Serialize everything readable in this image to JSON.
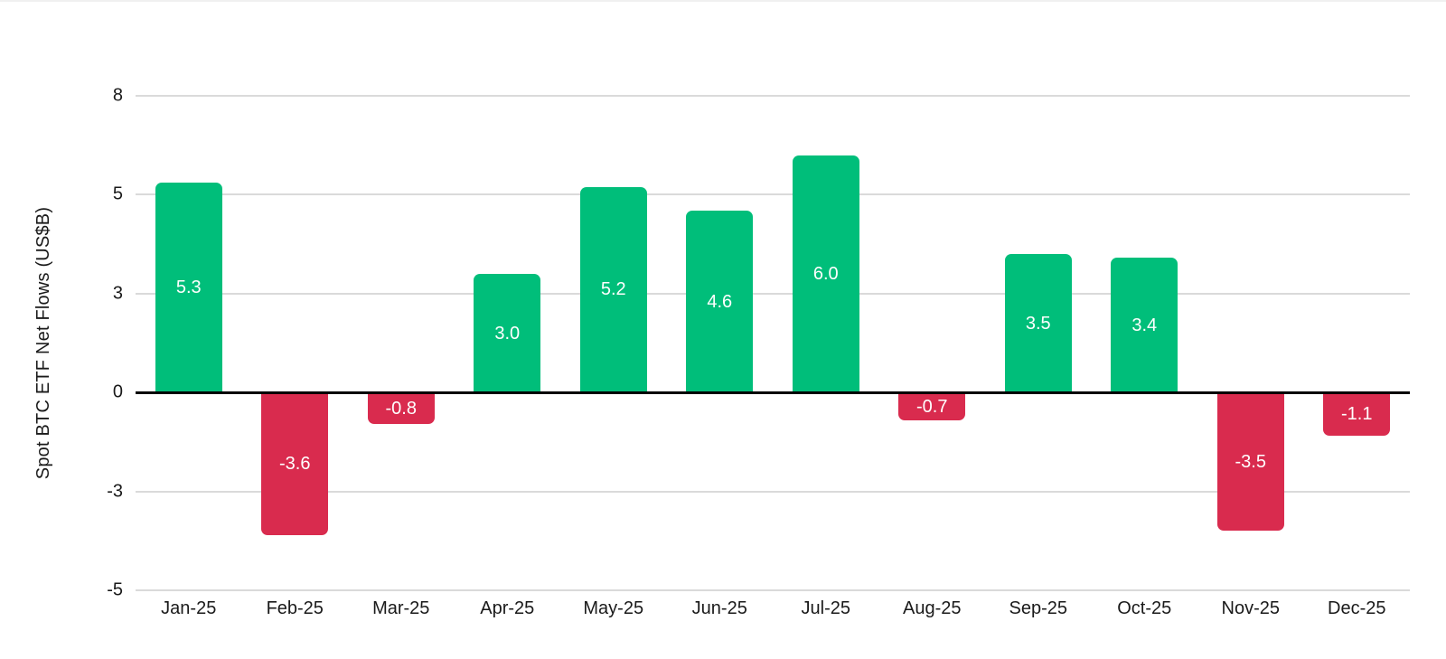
{
  "chart_data": {
    "type": "bar",
    "title": "",
    "xlabel": "",
    "ylabel": "Spot BTC ETF Net Flows (US$B)",
    "categories": [
      "Jan-25",
      "Feb-25",
      "Mar-25",
      "Apr-25",
      "May-25",
      "Jun-25",
      "Jul-25",
      "Aug-25",
      "Sep-25",
      "Oct-25",
      "Nov-25",
      "Dec-25"
    ],
    "values": [
      5.3,
      -3.6,
      -0.8,
      3.0,
      5.2,
      4.6,
      6.0,
      -0.7,
      3.5,
      3.4,
      -3.5,
      -1.1
    ],
    "bar_labels": [
      "5.3",
      "-3.6",
      "-0.8",
      "3.0",
      "5.2",
      "4.6",
      "6.0",
      "-0.7",
      "3.5",
      "3.4",
      "-3.5",
      "-1.1"
    ],
    "y_ticks": [
      {
        "label": "8",
        "value": 7.5
      },
      {
        "label": "5",
        "value": 5
      },
      {
        "label": "3",
        "value": 2.5
      },
      {
        "label": "0",
        "value": 0
      },
      {
        "label": "-3",
        "value": -2.5
      },
      {
        "label": "-5",
        "value": -5
      }
    ],
    "ylim": [
      -5,
      7.5
    ],
    "grid": true,
    "legend_position": "none",
    "colors": {
      "positive_bar": "#00BE7A",
      "negative_bar": "#D92B4E",
      "gridline": "#DADADA",
      "zero_line": "#000000",
      "bar_label_text": "#FFFFFF",
      "axis_text": "#1A1A1A",
      "background": "#FFFFFF"
    }
  }
}
